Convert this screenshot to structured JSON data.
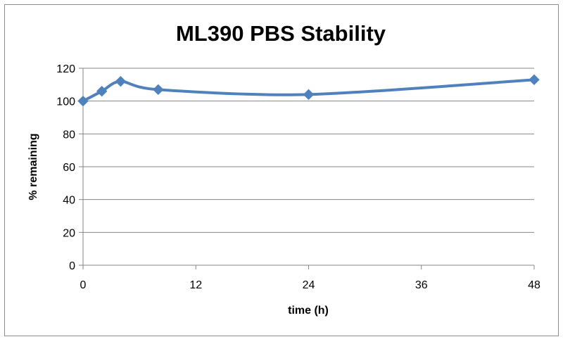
{
  "chart_data": {
    "type": "line",
    "title": "ML390 PBS Stability",
    "xlabel": "time (h)",
    "ylabel": "% remaining",
    "xlim": [
      0,
      48
    ],
    "ylim": [
      0,
      120
    ],
    "x_ticks": [
      "0",
      "12",
      "24",
      "36",
      "48"
    ],
    "y_ticks": [
      "0",
      "20",
      "40",
      "60",
      "80",
      "100",
      "120"
    ],
    "grid": "horizontal",
    "legend": "none",
    "marker": "diamond",
    "smooth": true,
    "series": [
      {
        "color": "#4F81BD",
        "points": [
          {
            "x": 0,
            "y": 100
          },
          {
            "x": 2,
            "y": 106
          },
          {
            "x": 4,
            "y": 112
          },
          {
            "x": 8,
            "y": 107
          },
          {
            "x": 24,
            "y": 104
          },
          {
            "x": 48,
            "y": 113
          }
        ]
      }
    ]
  }
}
